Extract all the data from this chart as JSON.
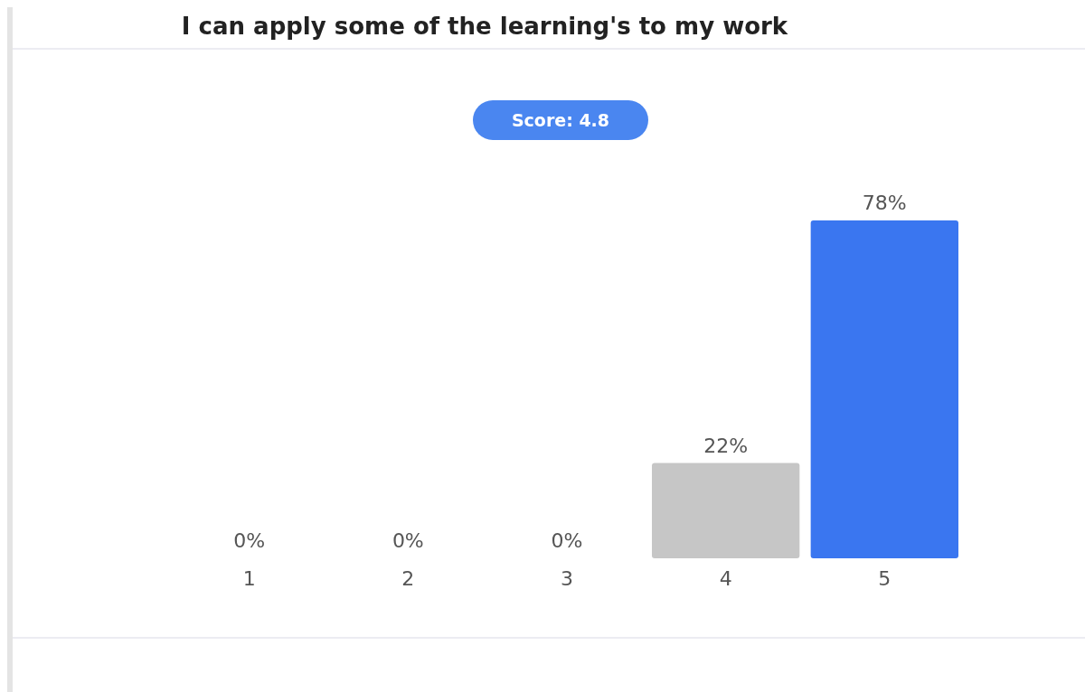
{
  "chart_data": {
    "type": "bar",
    "title": "I can apply some of the learning's to my work",
    "categories": [
      "1",
      "2",
      "3",
      "4",
      "5"
    ],
    "values": [
      0,
      0,
      0,
      22,
      78
    ],
    "value_labels": [
      "0%",
      "0%",
      "0%",
      "22%",
      "78%"
    ],
    "colors": [
      "#c6c6c6",
      "#c6c6c6",
      "#c6c6c6",
      "#c6c6c6",
      "#3a76f0"
    ],
    "annotations": [
      "Score: 4.8"
    ]
  }
}
